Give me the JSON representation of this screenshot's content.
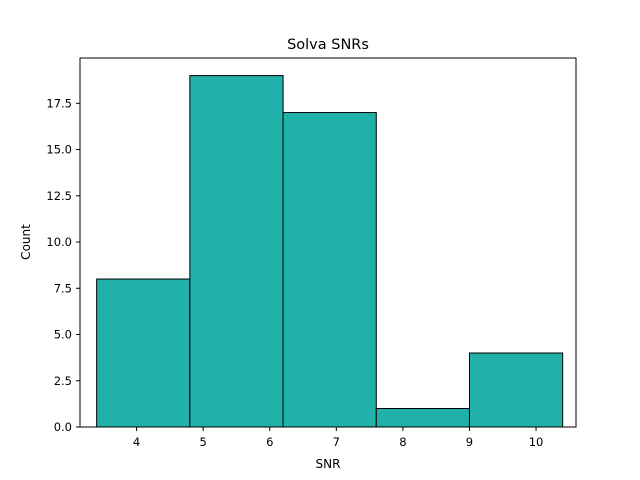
{
  "chart_data": {
    "type": "bar",
    "title": "Solva SNRs",
    "xlabel": "SNR",
    "ylabel": "Count",
    "bar_color": "#20b2aa",
    "edge_color": "#000000",
    "xlim": [
      3.15,
      10.6
    ],
    "ylim": [
      0,
      19.95
    ],
    "bins": [
      {
        "start": 3.4,
        "end": 4.8,
        "count": 8
      },
      {
        "start": 4.8,
        "end": 6.2,
        "count": 19
      },
      {
        "start": 6.2,
        "end": 7.6,
        "count": 17
      },
      {
        "start": 7.6,
        "end": 9.0,
        "count": 1
      },
      {
        "start": 9.0,
        "end": 10.4,
        "count": 4
      }
    ],
    "x_ticks": [
      {
        "value": 4,
        "label": "4"
      },
      {
        "value": 5,
        "label": "5"
      },
      {
        "value": 6,
        "label": "6"
      },
      {
        "value": 7,
        "label": "7"
      },
      {
        "value": 8,
        "label": "8"
      },
      {
        "value": 9,
        "label": "9"
      },
      {
        "value": 10,
        "label": "10"
      }
    ],
    "y_ticks": [
      {
        "value": 0,
        "label": "0.0"
      },
      {
        "value": 2.5,
        "label": "2.5"
      },
      {
        "value": 5,
        "label": "5.0"
      },
      {
        "value": 7.5,
        "label": "7.5"
      },
      {
        "value": 10,
        "label": "10.0"
      },
      {
        "value": 12.5,
        "label": "12.5"
      },
      {
        "value": 15,
        "label": "15.0"
      },
      {
        "value": 17.5,
        "label": "17.5"
      }
    ]
  }
}
